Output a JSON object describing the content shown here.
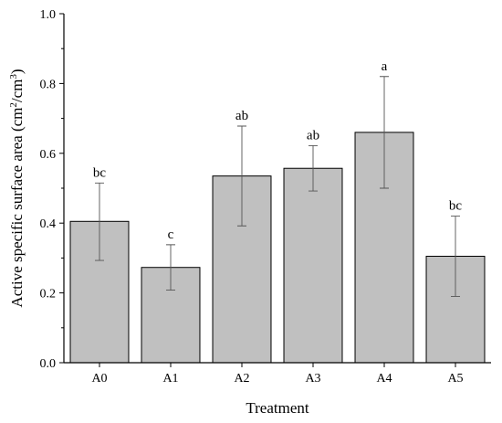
{
  "chart_data": {
    "type": "bar",
    "xlabel": "Treatment",
    "ylabel_main": "Active specific surface area (cm",
    "ylabel_sup1": "2",
    "ylabel_mid": "/cm",
    "ylabel_sup2": "3",
    "ylabel_end": ")",
    "ylim": [
      0.0,
      1.0
    ],
    "yticks": [
      "0.0",
      "0.2",
      "0.4",
      "0.6",
      "0.8",
      "1.0"
    ],
    "ytick_values": [
      0.0,
      0.2,
      0.4,
      0.6,
      0.8,
      1.0
    ],
    "categories": [
      "A0",
      "A1",
      "A2",
      "A3",
      "A4",
      "A5"
    ],
    "values": [
      0.405,
      0.273,
      0.535,
      0.557,
      0.66,
      0.305
    ],
    "err_low": [
      0.293,
      0.208,
      0.392,
      0.492,
      0.5,
      0.19
    ],
    "err_high": [
      0.515,
      0.338,
      0.678,
      0.622,
      0.82,
      0.42
    ],
    "letters": [
      "bc",
      "c",
      "ab",
      "ab",
      "a",
      "bc"
    ],
    "bar_color": "#c0c0c0",
    "grid": false,
    "legend": "none"
  }
}
